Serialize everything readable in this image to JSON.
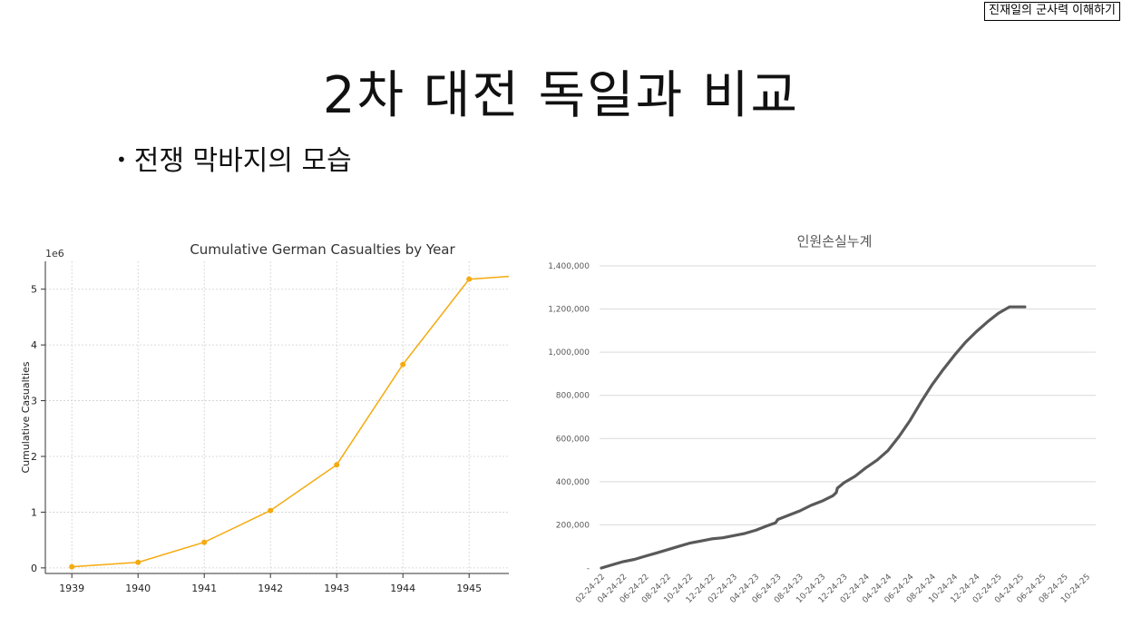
{
  "badge": "진재일의 군사력 이해하기",
  "title": "2차 대전 독일과 비교",
  "bullet": "전쟁 막바지의 모습",
  "chart_data": [
    {
      "type": "line",
      "title": "Cumulative German Casualties by Year",
      "xlabel": "",
      "ylabel": "Cumulative Casualties",
      "y_multiplier_label": "1e6",
      "x": [
        1939,
        1940,
        1941,
        1942,
        1943,
        1944,
        1945,
        1945.6
      ],
      "values": [
        0.02,
        0.1,
        0.46,
        1.03,
        1.85,
        3.65,
        5.18,
        5.23
      ],
      "markers": [
        true,
        true,
        true,
        true,
        true,
        true,
        true,
        false
      ],
      "x_ticks": [
        "1939",
        "1940",
        "1941",
        "1942",
        "1943",
        "1944",
        "1945"
      ],
      "y_ticks": [
        "0",
        "1",
        "2",
        "3",
        "4",
        "5"
      ],
      "xlim": [
        1938.6,
        1945.6
      ],
      "ylim": [
        -0.1,
        5.5
      ],
      "grid": true,
      "color": "#f5aa0e"
    },
    {
      "type": "line",
      "title": "인원손실누계",
      "xlabel": "",
      "ylabel": "",
      "x_ticks": [
        "02-24-22",
        "04-24-22",
        "06-24-22",
        "08-24-22",
        "10-24-22",
        "12-24-22",
        "02-24-23",
        "04-24-23",
        "06-24-23",
        "08-24-23",
        "10-24-23",
        "12-24-23",
        "02-24-24",
        "04-24-24",
        "06-24-24",
        "08-24-24",
        "10-24-24",
        "12-24-24",
        "02-24-25",
        "04-24-25",
        "06-24-25",
        "08-24-25",
        "10-24-25"
      ],
      "y_ticks": [
        "-",
        "200,000",
        "400,000",
        "600,000",
        "800,000",
        "1,000,000",
        "1,200,000",
        "1,400,000"
      ],
      "ylim": [
        0,
        1400000
      ],
      "x_month_index": [
        0,
        1,
        2,
        3,
        4,
        5,
        6,
        7,
        8,
        9,
        10,
        11,
        12,
        13,
        14,
        15,
        15.8,
        16,
        17,
        18,
        19,
        20,
        21,
        21.3,
        21.4,
        22,
        23,
        24,
        25,
        26,
        27,
        28,
        29,
        30,
        31,
        32,
        33,
        34,
        35,
        36,
        37,
        38,
        38.4
      ],
      "values": [
        0,
        15000,
        30000,
        40000,
        55000,
        70000,
        85000,
        100000,
        115000,
        125000,
        135000,
        140000,
        150000,
        160000,
        175000,
        195000,
        210000,
        225000,
        245000,
        265000,
        290000,
        310000,
        335000,
        350000,
        370000,
        395000,
        425000,
        465000,
        500000,
        545000,
        610000,
        685000,
        770000,
        850000,
        920000,
        985000,
        1045000,
        1095000,
        1140000,
        1180000,
        1210000,
        1210000,
        1210000
      ],
      "x_end_index": 38.2,
      "grid": true,
      "color": "#595959"
    }
  ]
}
